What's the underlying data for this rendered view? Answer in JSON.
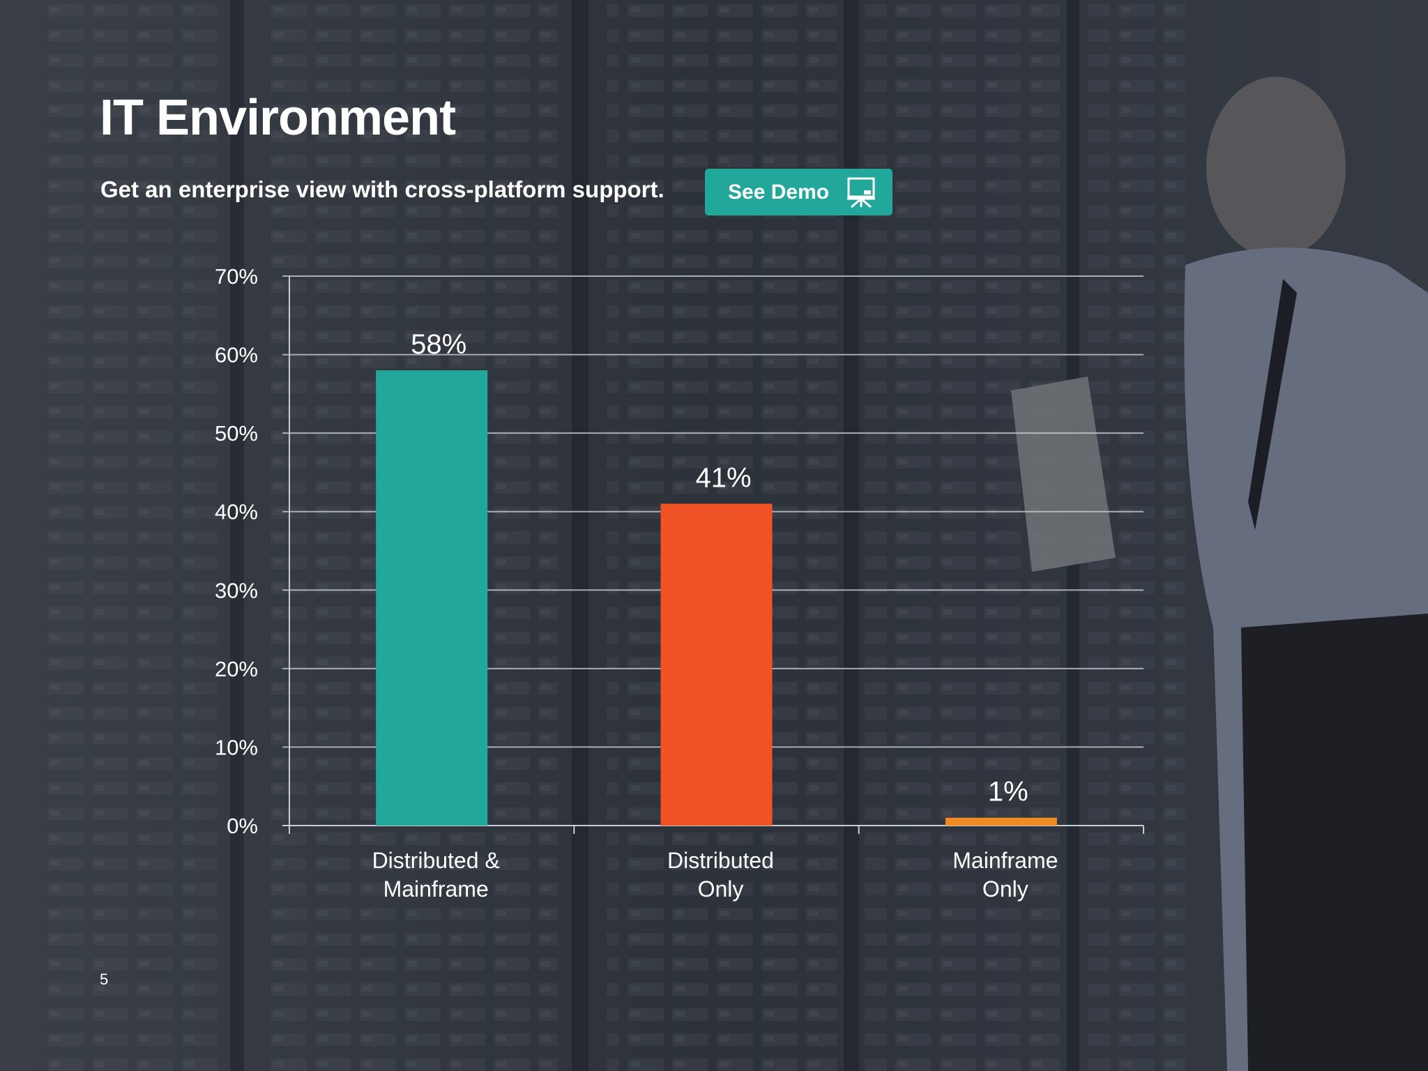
{
  "slide": {
    "title": "IT Environment",
    "subtitle": "Get an enterprise view with cross-platform support.",
    "demo_button": {
      "label": "See Demo",
      "icon": "presentation-board-icon",
      "color": "#22a79b"
    },
    "page_number": "5",
    "background": "server-room-photo-dark-overlay"
  },
  "chart_data": {
    "type": "bar",
    "categories": [
      [
        "Distributed &",
        "Mainframe"
      ],
      [
        "Distributed",
        "Only"
      ],
      [
        "Mainframe",
        "Only"
      ]
    ],
    "values": [
      58,
      41,
      1
    ],
    "value_labels": [
      "58%",
      "41%",
      "1%"
    ],
    "colors": [
      "#22a79b",
      "#ef5223",
      "#f08a23"
    ],
    "ylim": [
      0,
      70
    ],
    "yticks": [
      0,
      10,
      20,
      30,
      40,
      50,
      60,
      70
    ],
    "ytick_labels": [
      "0%",
      "10%",
      "20%",
      "30%",
      "40%",
      "50%",
      "60%",
      "70%"
    ],
    "grid": true,
    "legend": "none"
  }
}
